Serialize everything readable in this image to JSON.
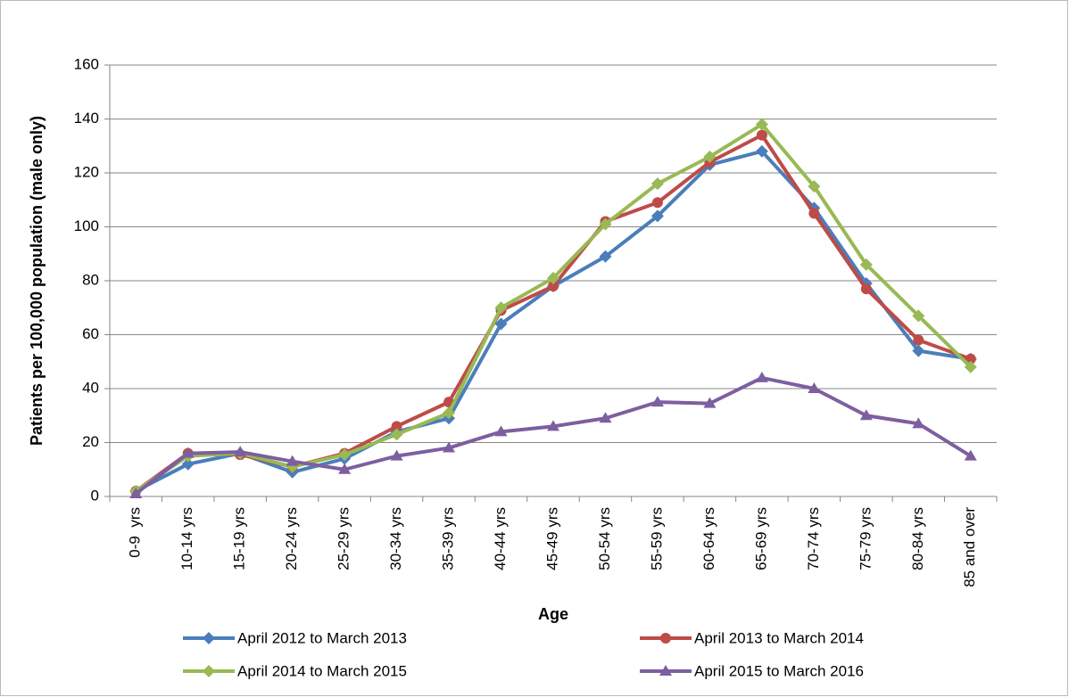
{
  "chart_data": {
    "type": "line",
    "y_label": "Patients per 100,000 population (male only)",
    "x_label": "Age",
    "categories": [
      "0-9  yrs",
      "10-14 yrs",
      "15-19 yrs",
      "20-24 yrs",
      "25-29 yrs",
      "30-34 yrs",
      "35-39 yrs",
      "40-44 yrs",
      "45-49 yrs",
      "50-54 yrs",
      "55-59 yrs",
      "60-64 yrs",
      "65-69 yrs",
      "70-74 yrs",
      "75-79 yrs",
      "80-84 yrs",
      "85 and over"
    ],
    "series": [
      {
        "name": "April 2012 to March 2013",
        "color": "#4a7ebb",
        "marker": "diamond",
        "values": [
          2,
          12,
          16,
          9,
          14,
          24,
          29,
          64,
          78,
          89,
          104,
          123,
          128,
          107,
          79,
          54,
          51
        ]
      },
      {
        "name": "April 2013 to March 2014",
        "color": "#be4b48",
        "marker": "circle",
        "values": [
          2,
          16,
          15.5,
          11,
          16,
          26,
          35,
          69,
          78,
          102,
          109,
          124,
          134,
          105,
          77,
          58,
          51
        ]
      },
      {
        "name": "April 2014 to March 2015",
        "color": "#98b954",
        "marker": "diamond",
        "values": [
          2,
          15,
          16,
          11,
          15.5,
          23,
          31,
          70,
          81,
          101,
          116,
          126,
          138,
          115,
          86,
          67,
          48
        ]
      },
      {
        "name": "April 2015 to March 2016",
        "color": "#7d5fa0",
        "marker": "triangle",
        "values": [
          1,
          16,
          16.5,
          13,
          10,
          15,
          18,
          24,
          26,
          29,
          35,
          34.5,
          44,
          40,
          30,
          27,
          15
        ]
      }
    ],
    "ylim": [
      0,
      160
    ],
    "yticks": [
      0,
      20,
      40,
      60,
      80,
      100,
      120,
      140,
      160
    ],
    "grid": true
  }
}
